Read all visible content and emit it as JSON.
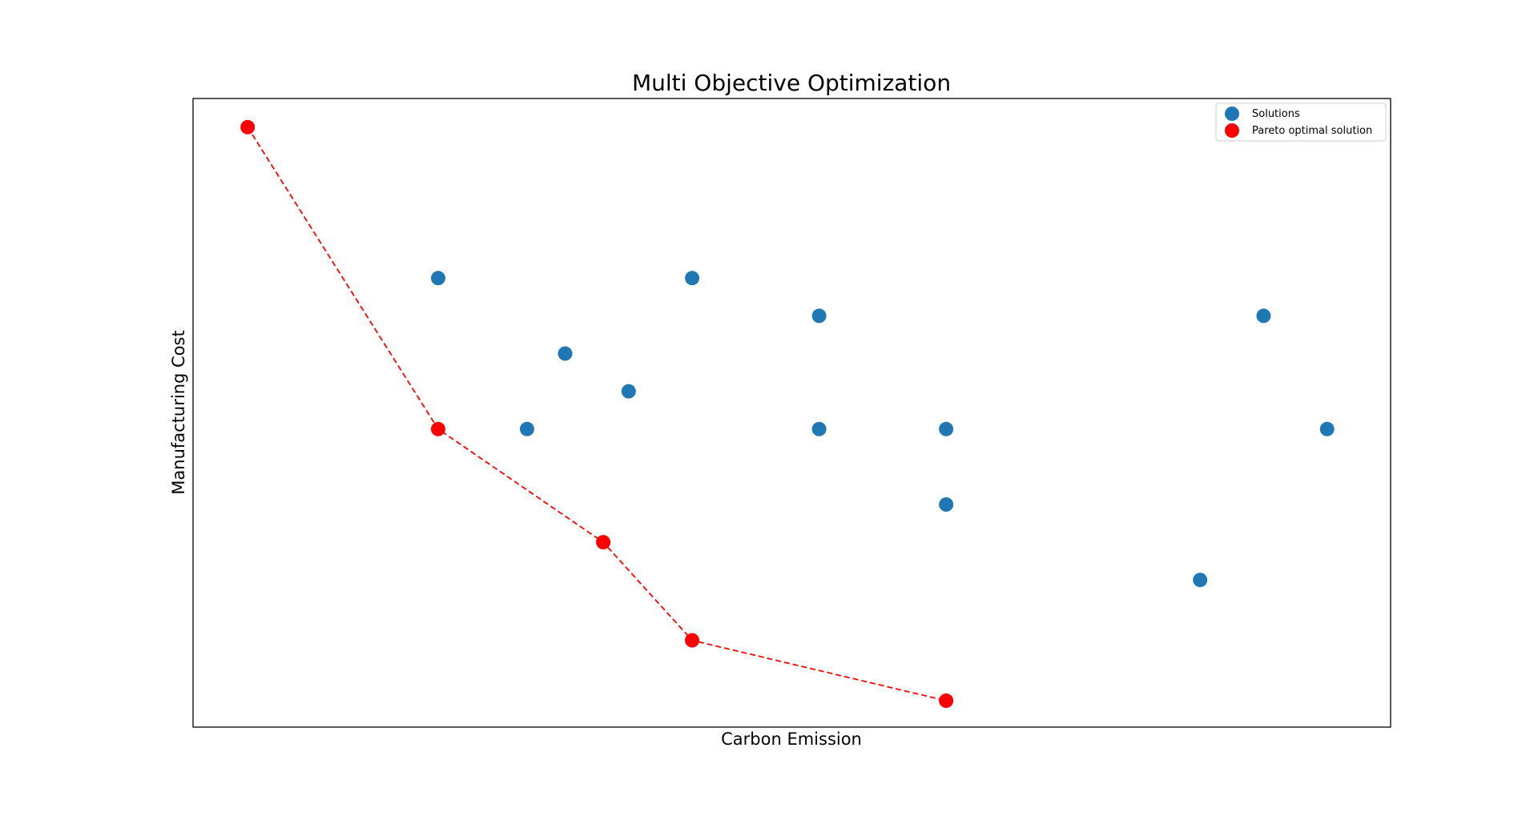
{
  "chart_data": {
    "type": "scatter",
    "title": "Multi Objective Optimization",
    "xlabel": "Carbon Emission",
    "ylabel": "Manufacturing Cost",
    "xlim": [
      0.57,
      10.0
    ],
    "ylim": [
      0.25,
      8.58
    ],
    "x_ticks_visible": false,
    "y_ticks_visible": false,
    "grid": false,
    "legend_position": "upper right",
    "series": [
      {
        "name": "Solutions",
        "color": "#1f77b4",
        "marker": "circle",
        "points": [
          {
            "x": 2.5,
            "y": 6.2
          },
          {
            "x": 3.2,
            "y": 4.2
          },
          {
            "x": 3.5,
            "y": 5.2
          },
          {
            "x": 4.0,
            "y": 4.7
          },
          {
            "x": 4.5,
            "y": 6.2
          },
          {
            "x": 5.5,
            "y": 5.7
          },
          {
            "x": 5.5,
            "y": 4.2
          },
          {
            "x": 6.5,
            "y": 4.2
          },
          {
            "x": 6.5,
            "y": 3.2
          },
          {
            "x": 8.5,
            "y": 2.2
          },
          {
            "x": 9.0,
            "y": 5.7
          },
          {
            "x": 9.5,
            "y": 4.2
          }
        ]
      },
      {
        "name": "Pareto optimal solution",
        "color": "#ff0000",
        "marker": "circle",
        "line_style": "dashed",
        "points": [
          {
            "x": 1.0,
            "y": 8.2
          },
          {
            "x": 2.5,
            "y": 4.2
          },
          {
            "x": 3.8,
            "y": 2.7
          },
          {
            "x": 4.5,
            "y": 1.4
          },
          {
            "x": 6.5,
            "y": 0.6
          }
        ]
      }
    ]
  }
}
